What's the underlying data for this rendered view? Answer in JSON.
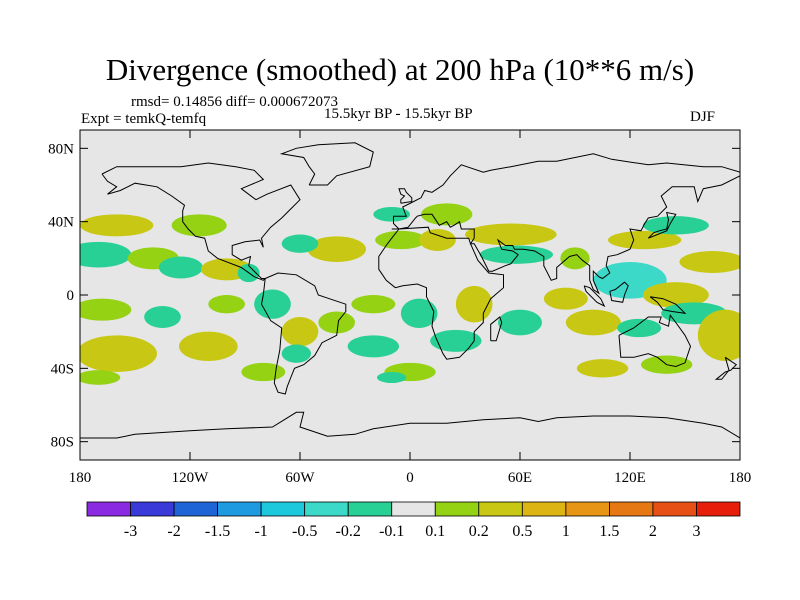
{
  "title": "Divergence (smoothed) at 200 hPa (10**6 m/s)",
  "stats_line": "rmsd= 0.14856 diff= 0.000672073",
  "experiment": "Expt = temkQ-temfq",
  "period": "15.5kyr BP - 15.5kyr BP",
  "season": "DJF",
  "map": {
    "projection": "cylindrical-equidistant",
    "lon_range": [
      -180,
      180
    ],
    "lat_range": [
      -90,
      90
    ],
    "background_color": "#e6e6e6",
    "coastline_color": "#000000",
    "lat_ticks": [
      {
        "lat": 80,
        "label": "80N"
      },
      {
        "lat": 40,
        "label": "40N"
      },
      {
        "lat": 0,
        "label": "0"
      },
      {
        "lat": -40,
        "label": "40S"
      },
      {
        "lat": -80,
        "label": "80S"
      }
    ],
    "lon_ticks": [
      {
        "lon": -180,
        "label": "180"
      },
      {
        "lon": -120,
        "label": "120W"
      },
      {
        "lon": -60,
        "label": "60W"
      },
      {
        "lon": 0,
        "label": "0"
      },
      {
        "lon": 60,
        "label": "60E"
      },
      {
        "lon": 120,
        "label": "120E"
      },
      {
        "lon": 180,
        "label": "180"
      }
    ]
  },
  "colorbar": {
    "colors": [
      "#8a2be2",
      "#3a3ad8",
      "#1e64d6",
      "#1e9be0",
      "#1ec8dc",
      "#3cd8c8",
      "#28d096",
      "#e6e6e6",
      "#96d214",
      "#c8c814",
      "#dcb414",
      "#e69614",
      "#e67814",
      "#e65014",
      "#e61e0a"
    ],
    "labels": [
      "-3",
      "-2",
      "-1.5",
      "-1",
      "-0.5",
      "-0.2",
      "-0.1",
      "0.1",
      "0.2",
      "0.5",
      "1",
      "1.5",
      "2",
      "3"
    ]
  },
  "chart_data": {
    "type": "contour-map",
    "variable": "Divergence (smoothed) at 200 hPa",
    "units": "10**6 m/s",
    "levels": [
      -3,
      -2,
      -1.5,
      -1,
      -0.5,
      -0.2,
      -0.1,
      0.1,
      0.2,
      0.5,
      1,
      1.5,
      2,
      3
    ],
    "blobs": [
      {
        "lon": -160,
        "lat": 38,
        "dlon": 20,
        "dlat": 6,
        "v": 0.2
      },
      {
        "lon": -115,
        "lat": 38,
        "dlon": 15,
        "dlat": 6,
        "v": 0.15
      },
      {
        "lon": -170,
        "lat": 22,
        "dlon": 18,
        "dlat": 7,
        "v": -0.15
      },
      {
        "lon": -140,
        "lat": 20,
        "dlon": 14,
        "dlat": 6,
        "v": 0.15
      },
      {
        "lon": -125,
        "lat": 15,
        "dlon": 12,
        "dlat": 6,
        "v": -0.15
      },
      {
        "lon": -100,
        "lat": 14,
        "dlon": 14,
        "dlat": 6,
        "v": 0.2
      },
      {
        "lon": -88,
        "lat": 12,
        "dlon": 6,
        "dlat": 5,
        "v": -0.15
      },
      {
        "lon": -40,
        "lat": 25,
        "dlon": 16,
        "dlat": 7,
        "v": 0.2
      },
      {
        "lon": -60,
        "lat": 28,
        "dlon": 10,
        "dlat": 5,
        "v": -0.15
      },
      {
        "lon": -5,
        "lat": 30,
        "dlon": 14,
        "dlat": 5,
        "v": 0.15
      },
      {
        "lon": 15,
        "lat": 30,
        "dlon": 10,
        "dlat": 6,
        "v": 0.2
      },
      {
        "lon": 20,
        "lat": 44,
        "dlon": 14,
        "dlat": 6,
        "v": 0.15
      },
      {
        "lon": -10,
        "lat": 44,
        "dlon": 10,
        "dlat": 4,
        "v": -0.15
      },
      {
        "lon": 55,
        "lat": 33,
        "dlon": 25,
        "dlat": 6,
        "v": 0.2
      },
      {
        "lon": 58,
        "lat": 22,
        "dlon": 20,
        "dlat": 5,
        "v": -0.15
      },
      {
        "lon": 90,
        "lat": 20,
        "dlon": 8,
        "dlat": 6,
        "v": 0.15
      },
      {
        "lon": 128,
        "lat": 30,
        "dlon": 20,
        "dlat": 5,
        "v": 0.2
      },
      {
        "lon": 145,
        "lat": 38,
        "dlon": 18,
        "dlat": 5,
        "v": -0.15
      },
      {
        "lon": 165,
        "lat": 18,
        "dlon": 18,
        "dlat": 6,
        "v": 0.2
      },
      {
        "lon": 120,
        "lat": 8,
        "dlon": 20,
        "dlat": 10,
        "v": -0.45
      },
      {
        "lon": 145,
        "lat": 0,
        "dlon": 18,
        "dlat": 7,
        "v": 0.25
      },
      {
        "lon": 155,
        "lat": -10,
        "dlon": 18,
        "dlat": 6,
        "v": -0.2
      },
      {
        "lon": 172,
        "lat": -22,
        "dlon": 15,
        "dlat": 14,
        "v": 0.3
      },
      {
        "lon": -168,
        "lat": -8,
        "dlon": 16,
        "dlat": 6,
        "v": 0.15
      },
      {
        "lon": -160,
        "lat": -32,
        "dlon": 22,
        "dlat": 10,
        "v": 0.25
      },
      {
        "lon": -135,
        "lat": -12,
        "dlon": 10,
        "dlat": 6,
        "v": -0.2
      },
      {
        "lon": -110,
        "lat": -28,
        "dlon": 16,
        "dlat": 8,
        "v": 0.2
      },
      {
        "lon": -100,
        "lat": -5,
        "dlon": 10,
        "dlat": 5,
        "v": 0.15
      },
      {
        "lon": -75,
        "lat": -5,
        "dlon": 10,
        "dlat": 8,
        "v": -0.2
      },
      {
        "lon": -60,
        "lat": -20,
        "dlon": 10,
        "dlat": 8,
        "v": 0.2
      },
      {
        "lon": -62,
        "lat": -32,
        "dlon": 8,
        "dlat": 5,
        "v": -0.15
      },
      {
        "lon": -40,
        "lat": -15,
        "dlon": 10,
        "dlat": 6,
        "v": 0.15
      },
      {
        "lon": -20,
        "lat": -28,
        "dlon": 14,
        "dlat": 6,
        "v": -0.2
      },
      {
        "lon": -20,
        "lat": -5,
        "dlon": 12,
        "dlat": 5,
        "v": 0.15
      },
      {
        "lon": 5,
        "lat": -10,
        "dlon": 10,
        "dlat": 8,
        "v": -0.2
      },
      {
        "lon": 35,
        "lat": -5,
        "dlon": 10,
        "dlat": 10,
        "v": 0.2
      },
      {
        "lon": 25,
        "lat": -25,
        "dlon": 14,
        "dlat": 6,
        "v": -0.15
      },
      {
        "lon": 60,
        "lat": -15,
        "dlon": 12,
        "dlat": 7,
        "v": -0.15
      },
      {
        "lon": 85,
        "lat": -2,
        "dlon": 12,
        "dlat": 6,
        "v": 0.25
      },
      {
        "lon": 100,
        "lat": -15,
        "dlon": 15,
        "dlat": 7,
        "v": 0.3
      },
      {
        "lon": 125,
        "lat": -18,
        "dlon": 12,
        "dlat": 5,
        "v": -0.15
      },
      {
        "lon": -170,
        "lat": -45,
        "dlon": 12,
        "dlat": 4,
        "v": 0.15
      },
      {
        "lon": -80,
        "lat": -42,
        "dlon": 12,
        "dlat": 5,
        "v": 0.15
      },
      {
        "lon": 0,
        "lat": -42,
        "dlon": 14,
        "dlat": 5,
        "v": 0.15
      },
      {
        "lon": -10,
        "lat": -45,
        "dlon": 8,
        "dlat": 3,
        "v": -0.15
      },
      {
        "lon": 105,
        "lat": -40,
        "dlon": 14,
        "dlat": 5,
        "v": 0.2
      },
      {
        "lon": 140,
        "lat": -38,
        "dlon": 14,
        "dlat": 5,
        "v": 0.15
      }
    ]
  }
}
